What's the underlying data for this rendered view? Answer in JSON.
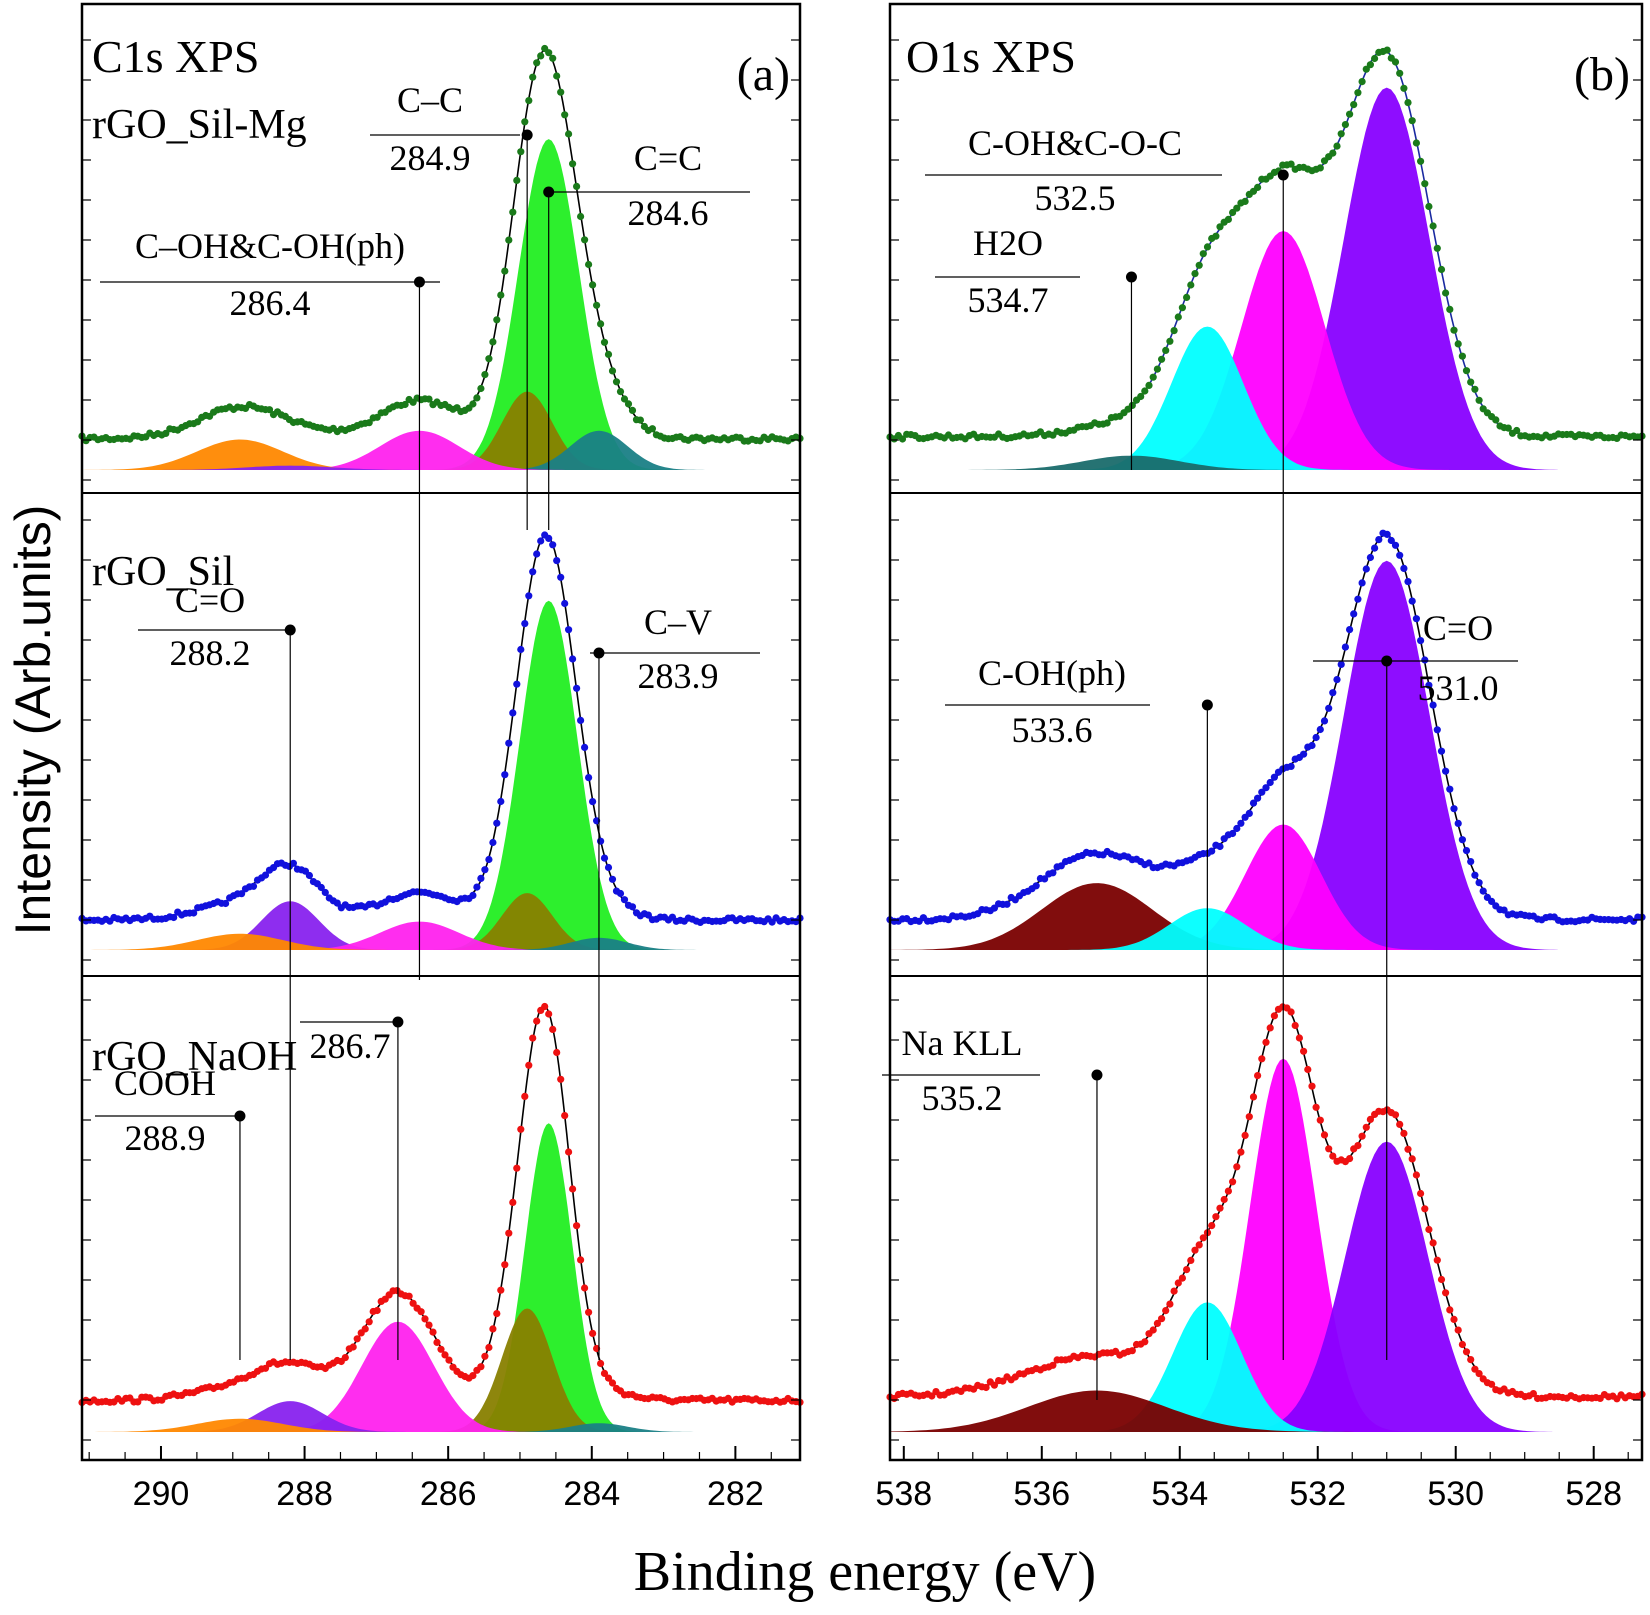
{
  "chart_data": {
    "type": "xps-spectra",
    "y_axis_label": "Intensity (Arb.units)",
    "x_axis_label": "Binding energy (eV)",
    "sample_names": [
      "rGO_Sil-Mg",
      "rGO_Sil",
      "rGO_NaOH"
    ],
    "component_colors": {
      "C=C": "#22ee22",
      "C-C": "#888000",
      "C-V": "#1a7f86",
      "C-OH": "#ff22ee",
      "C=O_C1s": "#8822ee",
      "COOH": "#ff8800",
      "O_C=O": "#8800ff",
      "O_C-OH&C-O-C": "#ff00ff",
      "O_C-OH(ph)": "#00ffff",
      "O_H2O": "#1a6b6b",
      "O_NaKLL": "#7a0000"
    },
    "series_colors": {
      "rGO_Sil-Mg": "#1a7a1a",
      "rGO_Sil": "#1111dd",
      "rGO_NaOH": "#ee1111"
    },
    "panels": [
      {
        "id": "a",
        "letter": "(a)",
        "title": "C1s XPS",
        "xlim": [
          291.1,
          281.1
        ],
        "xticks": [
          "290",
          "288",
          "286",
          "284",
          "282"
        ],
        "xtick_values": [
          290,
          288,
          286,
          284,
          282
        ],
        "labels": [
          {
            "name": "C–C",
            "value": "284.9",
            "energy": 284.9
          },
          {
            "name": "C=C",
            "value": "284.6",
            "energy": 284.6
          },
          {
            "name": "C–OH&C-OH(ph)",
            "value": "286.4",
            "energy": 286.4
          },
          {
            "name": "C=O",
            "value": "288.2",
            "energy": 288.2
          },
          {
            "name": "C–V",
            "value": "283.9",
            "energy": 283.9
          },
          {
            "name": "",
            "value": "286.7",
            "energy": 286.7
          },
          {
            "name": "COOH",
            "value": "288.9",
            "energy": 288.9
          }
        ],
        "spectra": [
          {
            "sample": "rGO_Sil-Mg",
            "baseline": 0,
            "peak_intensity": 1.0,
            "components": [
              {
                "label": "C=C",
                "center": 284.6,
                "height": 0.76,
                "sigma": 0.42
              },
              {
                "label": "C–C",
                "center": 284.9,
                "height": 0.18,
                "sigma": 0.35
              },
              {
                "label": "C–V",
                "center": 283.9,
                "height": 0.09,
                "sigma": 0.4
              },
              {
                "label": "C–OH&C-OH(ph)",
                "center": 286.4,
                "height": 0.09,
                "sigma": 0.55
              },
              {
                "label": "C=O",
                "center": 288.2,
                "height": 0.01,
                "sigma": 0.6
              },
              {
                "label": "COOH",
                "center": 288.9,
                "height": 0.07,
                "sigma": 0.6
              }
            ]
          },
          {
            "sample": "rGO_Sil",
            "baseline": 0,
            "peak_intensity": 1.0,
            "components": [
              {
                "label": "C=C",
                "center": 284.6,
                "height": 0.86,
                "sigma": 0.4
              },
              {
                "label": "C–C",
                "center": 284.9,
                "height": 0.14,
                "sigma": 0.35
              },
              {
                "label": "C–V",
                "center": 283.9,
                "height": 0.03,
                "sigma": 0.4
              },
              {
                "label": "C–OH&C-OH(ph)",
                "center": 286.4,
                "height": 0.07,
                "sigma": 0.55
              },
              {
                "label": "C=O",
                "center": 288.2,
                "height": 0.12,
                "sigma": 0.4
              },
              {
                "label": "COOH",
                "center": 288.9,
                "height": 0.04,
                "sigma": 0.6
              }
            ]
          },
          {
            "sample": "rGO_NaOH",
            "baseline": 0,
            "peak_intensity": 1.0,
            "components": [
              {
                "label": "C=C",
                "center": 284.6,
                "height": 0.7,
                "sigma": 0.33
              },
              {
                "label": "C–C",
                "center": 284.9,
                "height": 0.28,
                "sigma": 0.35
              },
              {
                "label": "C–V",
                "center": 283.9,
                "height": 0.02,
                "sigma": 0.4
              },
              {
                "label": "C–OH",
                "center": 286.7,
                "height": 0.25,
                "sigma": 0.5
              },
              {
                "label": "C=O",
                "center": 288.2,
                "height": 0.07,
                "sigma": 0.45
              },
              {
                "label": "COOH",
                "center": 288.9,
                "height": 0.03,
                "sigma": 0.6
              }
            ]
          }
        ]
      },
      {
        "id": "b",
        "letter": "(b)",
        "title": "O1s XPS",
        "xlim": [
          538.2,
          527.3
        ],
        "xticks": [
          "538",
          "536",
          "534",
          "532",
          "530",
          "528"
        ],
        "xtick_values": [
          538,
          536,
          534,
          532,
          530,
          528
        ],
        "labels": [
          {
            "name": "C-OH&C-O-C",
            "value": "532.5",
            "energy": 532.5
          },
          {
            "name": "H2O",
            "value": "534.7",
            "energy": 534.7
          },
          {
            "name": "C-OH(ph)",
            "value": "533.6",
            "energy": 533.6
          },
          {
            "name": "C=O",
            "value": "531.0",
            "energy": 531.0
          },
          {
            "name": "Na KLL",
            "value": "535.2",
            "energy": 535.2
          }
        ],
        "spectra": [
          {
            "sample": "rGO_Sil-Mg",
            "baseline": 0,
            "peak_intensity": 1.0,
            "components": [
              {
                "label": "C=O",
                "center": 531.0,
                "height": 0.8,
                "sigma": 0.62
              },
              {
                "label": "C-OH&C-O-C",
                "center": 532.5,
                "height": 0.5,
                "sigma": 0.6
              },
              {
                "label": "C-OH(ph)",
                "center": 533.6,
                "height": 0.3,
                "sigma": 0.52
              },
              {
                "label": "H2O",
                "center": 534.7,
                "height": 0.03,
                "sigma": 0.7
              }
            ]
          },
          {
            "sample": "rGO_Sil",
            "baseline": 0,
            "peak_intensity": 1.0,
            "components": [
              {
                "label": "C=O",
                "center": 531.0,
                "height": 0.93,
                "sigma": 0.62
              },
              {
                "label": "C-OH&C-O-C",
                "center": 532.5,
                "height": 0.3,
                "sigma": 0.55
              },
              {
                "label": "C-OH(ph)",
                "center": 533.6,
                "height": 0.1,
                "sigma": 0.55
              },
              {
                "label": "Na KLL",
                "center": 535.2,
                "height": 0.16,
                "sigma": 0.8
              }
            ]
          },
          {
            "sample": "rGO_NaOH",
            "baseline": 0,
            "peak_intensity": 1.0,
            "components": [
              {
                "label": "C=O",
                "center": 531.0,
                "height": 0.56,
                "sigma": 0.6
              },
              {
                "label": "C-OH&C-O-C",
                "center": 532.5,
                "height": 0.72,
                "sigma": 0.48
              },
              {
                "label": "C-OH(ph)",
                "center": 533.6,
                "height": 0.25,
                "sigma": 0.5
              },
              {
                "label": "Na KLL",
                "center": 535.2,
                "height": 0.08,
                "sigma": 1.0
              }
            ]
          }
        ]
      }
    ]
  }
}
